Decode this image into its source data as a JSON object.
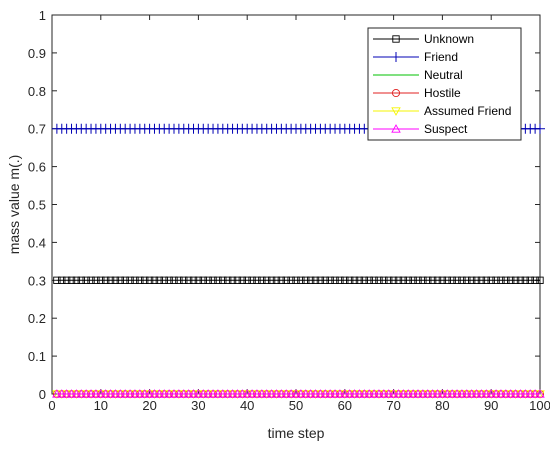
{
  "chart_data": {
    "type": "line",
    "title": "",
    "xlabel": "time step",
    "ylabel": "mass value m(.)",
    "xlim": [
      0,
      100
    ],
    "ylim": [
      0,
      1
    ],
    "xticks": [
      0,
      10,
      20,
      30,
      40,
      50,
      60,
      70,
      80,
      90,
      100
    ],
    "yticks": [
      0,
      0.1,
      0.2,
      0.3,
      0.4,
      0.5,
      0.6,
      0.7,
      0.8,
      0.9,
      1
    ],
    "xtick_labels": [
      "0",
      "10",
      "20",
      "30",
      "40",
      "50",
      "60",
      "70",
      "80",
      "90",
      "100"
    ],
    "ytick_labels": [
      "0",
      "0.1",
      "0.2",
      "0.3",
      "0.4",
      "0.5",
      "0.6",
      "0.7",
      "0.8",
      "0.9",
      "1"
    ],
    "grid": false,
    "legend_position": "top-right",
    "x_start": 1,
    "x_end": 100,
    "series": [
      {
        "name": "Unknown",
        "constant_value": 0.3,
        "color": "#000000",
        "marker": "square"
      },
      {
        "name": "Friend",
        "constant_value": 0.7,
        "color": "#0000b4",
        "marker": "plus"
      },
      {
        "name": "Neutral",
        "constant_value": 0,
        "color": "#00c000",
        "marker": "none"
      },
      {
        "name": "Hostile",
        "constant_value": 0,
        "color": "#e02020",
        "marker": "circle"
      },
      {
        "name": "Assumed Friend",
        "constant_value": 0,
        "color": "#f5f500",
        "marker": "triangle-down"
      },
      {
        "name": "Suspect",
        "constant_value": 0,
        "color": "#ff00ff",
        "marker": "triangle-up"
      }
    ]
  }
}
